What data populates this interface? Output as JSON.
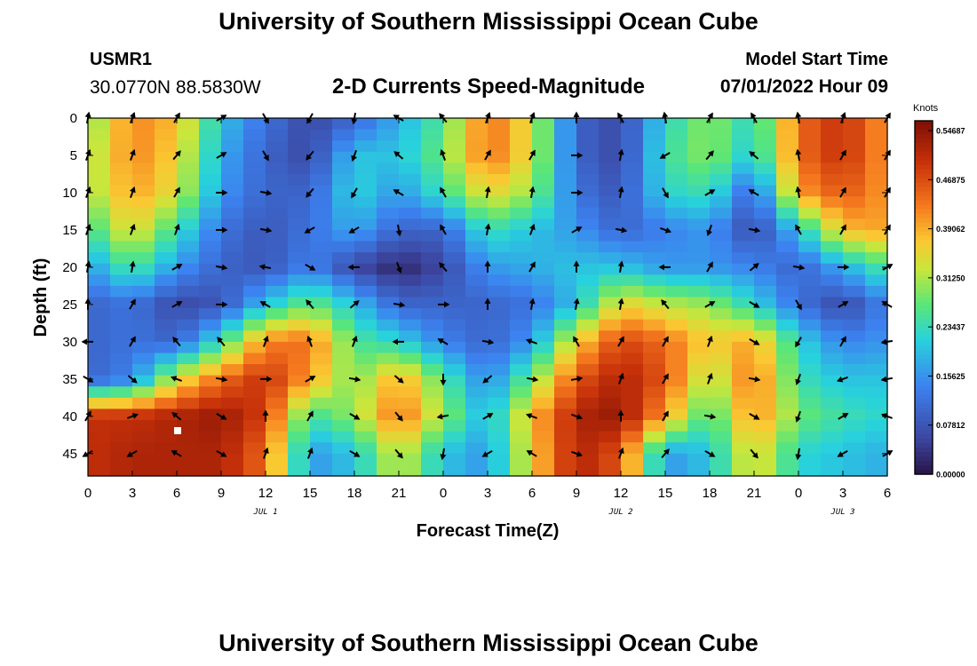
{
  "header": {
    "title": "University of Southern Mississippi Ocean Cube",
    "station_id": "USMR1",
    "coordinates": "30.0770N  88.5830W",
    "plot_title": "2-D Currents Speed-Magnitude",
    "model_start_label": "Model Start Time",
    "model_start_value": "07/01/2022 Hour 09"
  },
  "footer": {
    "title": "University of Southern Mississippi Ocean Cube"
  },
  "colorbar": {
    "unit": "Knots",
    "ticks": [
      "0.54687",
      "0.46875",
      "0.39062",
      "0.31250",
      "0.23437",
      "0.15625",
      "0.07812",
      "0.00000"
    ],
    "tick_values": [
      0.54687,
      0.46875,
      0.39062,
      0.3125,
      0.23437,
      0.15625,
      0.07812,
      0.0
    ],
    "min": 0.0,
    "max": 0.5625
  },
  "chart_data": {
    "type": "heatmap",
    "title": "2-D Currents Speed-Magnitude",
    "xlabel": "Forecast Time(Z)",
    "ylabel": "Depth (ft)",
    "x_ticks": [
      "0",
      "3",
      "6",
      "9",
      "12",
      "15",
      "18",
      "21",
      "0",
      "3",
      "6",
      "9",
      "12",
      "15",
      "18",
      "21",
      "0",
      "3",
      "6"
    ],
    "x_range_hours": [
      0,
      54
    ],
    "y_ticks": [
      0,
      5,
      10,
      15,
      20,
      25,
      30,
      35,
      40,
      45
    ],
    "ylim": [
      0,
      48
    ],
    "date_labels": [
      {
        "text": "JUL 1",
        "hour": 12
      },
      {
        "text": "JUL 2",
        "hour": 36
      },
      {
        "text": "JUL 3",
        "hour": 51
      }
    ],
    "depths": [
      0,
      5,
      10,
      15,
      20,
      25,
      30,
      35,
      40,
      45
    ],
    "hours": [
      0,
      3,
      6,
      9,
      12,
      15,
      18,
      21,
      24,
      27,
      30,
      33,
      36,
      39,
      42,
      45,
      48,
      51,
      54
    ],
    "speed_knots": [
      [
        0.28,
        0.42,
        0.38,
        0.2,
        0.12,
        0.06,
        0.1,
        0.18,
        0.26,
        0.44,
        0.34,
        0.1,
        0.06,
        0.22,
        0.3,
        0.22,
        0.44,
        0.5,
        0.4
      ],
      [
        0.3,
        0.42,
        0.36,
        0.18,
        0.1,
        0.06,
        0.2,
        0.2,
        0.28,
        0.44,
        0.34,
        0.1,
        0.06,
        0.24,
        0.3,
        0.2,
        0.44,
        0.5,
        0.4
      ],
      [
        0.3,
        0.4,
        0.34,
        0.16,
        0.1,
        0.1,
        0.22,
        0.16,
        0.24,
        0.36,
        0.3,
        0.12,
        0.08,
        0.22,
        0.24,
        0.1,
        0.4,
        0.46,
        0.4
      ],
      [
        0.24,
        0.36,
        0.24,
        0.12,
        0.08,
        0.12,
        0.18,
        0.1,
        0.1,
        0.24,
        0.2,
        0.16,
        0.1,
        0.14,
        0.16,
        0.06,
        0.2,
        0.38,
        0.4
      ],
      [
        0.16,
        0.26,
        0.16,
        0.1,
        0.08,
        0.14,
        0.06,
        0.02,
        0.06,
        0.16,
        0.18,
        0.2,
        0.2,
        0.16,
        0.16,
        0.14,
        0.1,
        0.18,
        0.26
      ],
      [
        0.1,
        0.12,
        0.06,
        0.08,
        0.2,
        0.28,
        0.2,
        0.1,
        0.1,
        0.1,
        0.12,
        0.2,
        0.36,
        0.32,
        0.3,
        0.22,
        0.12,
        0.06,
        0.14
      ],
      [
        0.1,
        0.12,
        0.1,
        0.24,
        0.42,
        0.44,
        0.26,
        0.22,
        0.14,
        0.1,
        0.16,
        0.36,
        0.48,
        0.44,
        0.36,
        0.4,
        0.22,
        0.14,
        0.16
      ],
      [
        0.1,
        0.14,
        0.34,
        0.44,
        0.5,
        0.4,
        0.28,
        0.4,
        0.26,
        0.14,
        0.28,
        0.46,
        0.52,
        0.46,
        0.3,
        0.44,
        0.24,
        0.2,
        0.2
      ],
      [
        0.5,
        0.5,
        0.52,
        0.54,
        0.48,
        0.24,
        0.3,
        0.44,
        0.3,
        0.18,
        0.38,
        0.52,
        0.54,
        0.4,
        0.24,
        0.42,
        0.28,
        0.24,
        0.22
      ],
      [
        0.5,
        0.52,
        0.52,
        0.52,
        0.44,
        0.16,
        0.2,
        0.34,
        0.2,
        0.16,
        0.36,
        0.52,
        0.46,
        0.16,
        0.2,
        0.36,
        0.22,
        0.2,
        0.18
      ]
    ],
    "direction_deg": [
      [
        10,
        20,
        30,
        60,
        150,
        210,
        190,
        300,
        320,
        20,
        20,
        0,
        330,
        350,
        30,
        330,
        350,
        20,
        30
      ],
      [
        20,
        20,
        40,
        60,
        150,
        220,
        200,
        310,
        340,
        30,
        30,
        90,
        10,
        240,
        40,
        310,
        350,
        30,
        30
      ],
      [
        20,
        20,
        30,
        90,
        100,
        220,
        210,
        300,
        330,
        10,
        10,
        90,
        10,
        150,
        60,
        300,
        350,
        30,
        30
      ],
      [
        20,
        20,
        20,
        90,
        100,
        240,
        240,
        170,
        330,
        10,
        20,
        60,
        100,
        110,
        200,
        100,
        330,
        30,
        30
      ],
      [
        10,
        10,
        60,
        100,
        280,
        120,
        270,
        160,
        320,
        0,
        30,
        0,
        10,
        270,
        30,
        50,
        100,
        90,
        60
      ],
      [
        0,
        30,
        60,
        90,
        300,
        320,
        50,
        100,
        90,
        0,
        10,
        10,
        10,
        320,
        60,
        120,
        150,
        60,
        300
      ],
      [
        270,
        30,
        320,
        320,
        20,
        340,
        20,
        270,
        300,
        100,
        290,
        330,
        30,
        30,
        20,
        120,
        210,
        30,
        260
      ],
      [
        120,
        130,
        290,
        100,
        90,
        60,
        100,
        130,
        180,
        230,
        100,
        80,
        20,
        30,
        20,
        100,
        200,
        250,
        260
      ],
      [
        30,
        70,
        310,
        120,
        0,
        30,
        120,
        140,
        260,
        60,
        290,
        110,
        0,
        30,
        100,
        120,
        200,
        60,
        290
      ],
      [
        240,
        240,
        300,
        120,
        20,
        20,
        120,
        140,
        190,
        240,
        300,
        110,
        20,
        40,
        120,
        140,
        190,
        240,
        60
      ]
    ]
  }
}
